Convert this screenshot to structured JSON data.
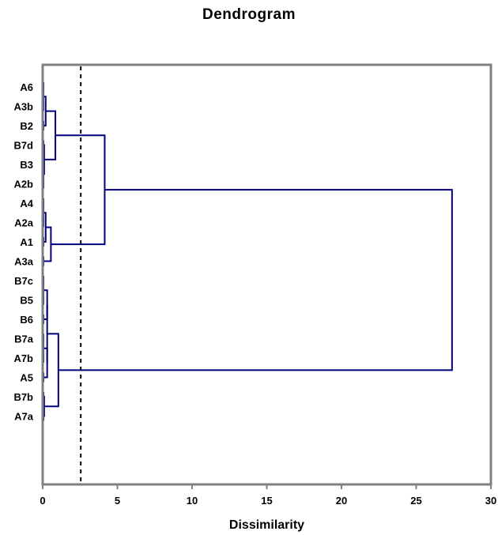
{
  "chart_data": {
    "type": "dendrogram",
    "title": "Dendrogram",
    "xlabel": "Dissimilarity",
    "xlim": [
      0,
      30
    ],
    "x_ticks": [
      0,
      5,
      10,
      15,
      20,
      25,
      30
    ],
    "leaves": [
      "A6",
      "A3b",
      "B2",
      "B7d",
      "B3",
      "A2b",
      "A4",
      "A2a",
      "A1",
      "A3a",
      "B7c",
      "B5",
      "B6",
      "B7a",
      "A7b",
      "A5",
      "B7b",
      "A7a"
    ],
    "merges": [
      {
        "left": "A6",
        "right": "A3b",
        "height": 0.05
      },
      {
        "left": "m0",
        "right": "B2",
        "height": 0.2
      },
      {
        "left": "B3",
        "right": "A2b",
        "height": 0.05
      },
      {
        "left": "B7d",
        "right": "m2",
        "height": 0.1
      },
      {
        "left": "m1",
        "right": "m3",
        "height": 0.85
      },
      {
        "left": "A4",
        "right": "A2a",
        "height": 0.05
      },
      {
        "left": "m5",
        "right": "A1",
        "height": 0.2
      },
      {
        "left": "m6",
        "right": "A3a",
        "height": 0.55
      },
      {
        "left": "m4",
        "right": "m7",
        "height": 4.15
      },
      {
        "left": "B7c",
        "right": "B5",
        "height": 0.05
      },
      {
        "left": "m9",
        "right": "B6",
        "height": 0.3
      },
      {
        "left": "B7a",
        "right": "A7b",
        "height": 0.05
      },
      {
        "left": "m11",
        "right": "A5",
        "height": 0.3
      },
      {
        "left": "m10",
        "right": "m12",
        "height": 0.3
      },
      {
        "left": "B7b",
        "right": "A7a",
        "height": 0.1
      },
      {
        "left": "m13",
        "right": "m14",
        "height": 1.05
      },
      {
        "left": "m8",
        "right": "m15",
        "height": 27.4
      }
    ],
    "truncation_line": 2.55,
    "line_color": "#000080",
    "grid": false,
    "legend": "none"
  }
}
